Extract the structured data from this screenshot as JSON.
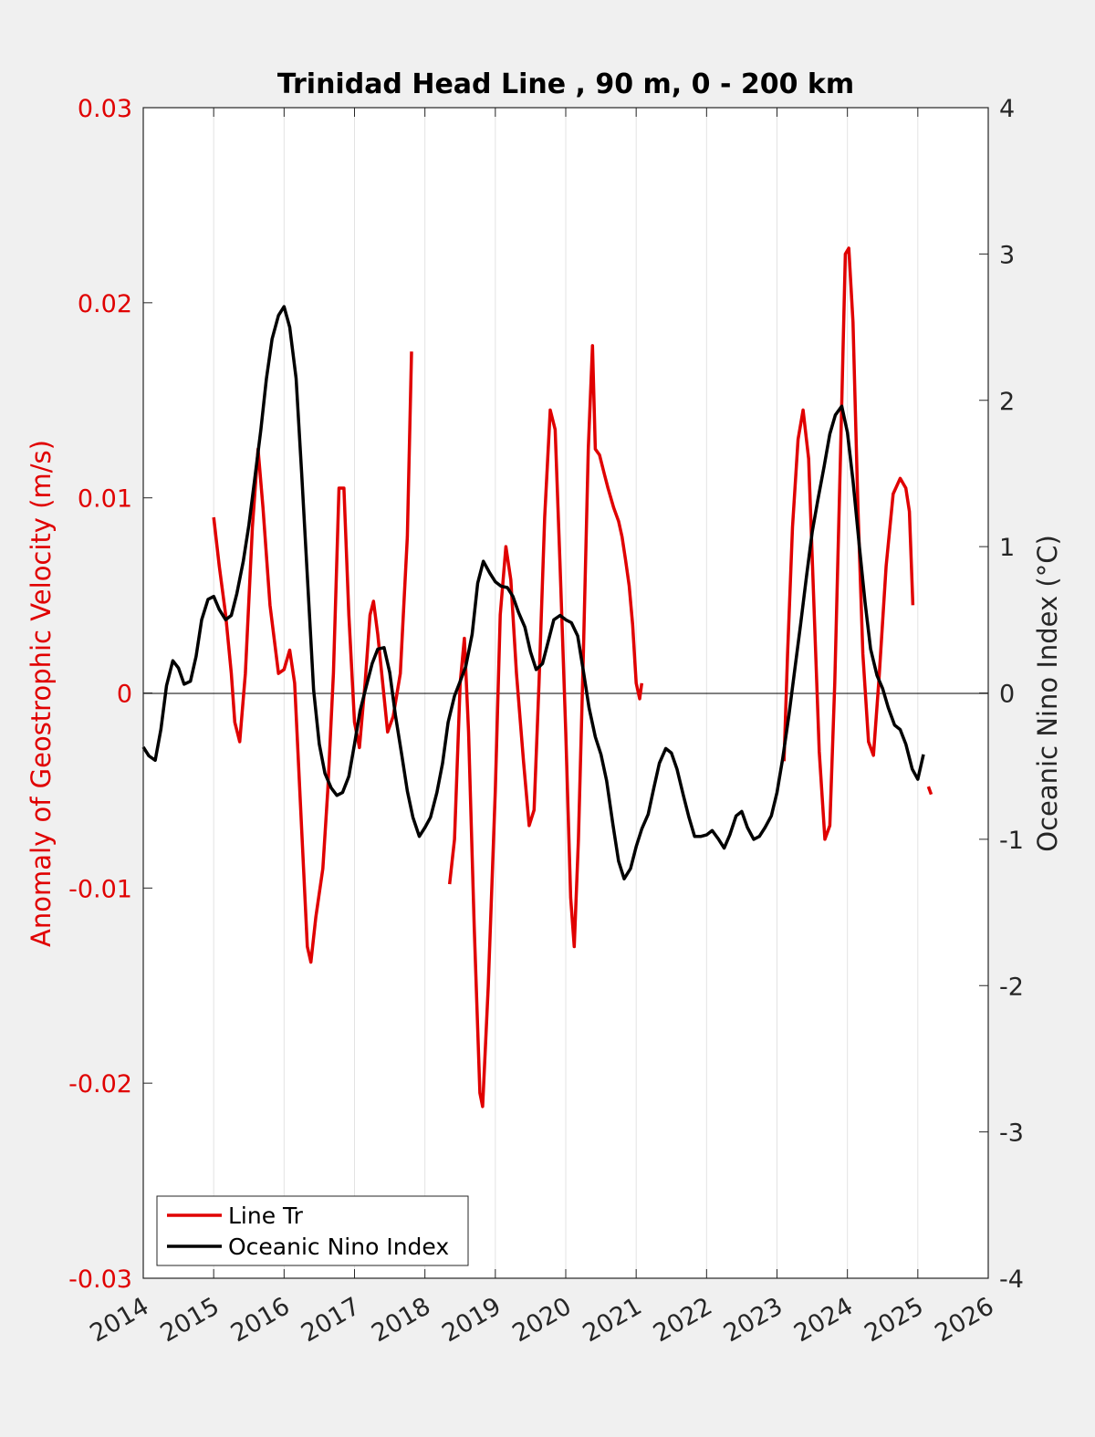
{
  "chart_data": {
    "type": "line",
    "title": "Trinidad Head Line , 90 m, 0 - 200 km",
    "ylabel_left": "Anomaly of Geostrophic Velocity (m/s)",
    "ylabel_right": "Oceanic Nino Index (°C)",
    "xlim": [
      2014,
      2026
    ],
    "ylim_left": [
      -0.03,
      0.03
    ],
    "ylim_right": [
      -4,
      4
    ],
    "x_ticks": [
      "2014",
      "2015",
      "2016",
      "2017",
      "2018",
      "2019",
      "2020",
      "2021",
      "2022",
      "2023",
      "2024",
      "2025",
      "2026"
    ],
    "y_left_ticks": [
      "0.03",
      "0.02",
      "0.01",
      "0",
      "-0.01",
      "-0.02",
      "-0.03"
    ],
    "y_right_ticks": [
      "4",
      "3",
      "2",
      "1",
      "0",
      "-1",
      "-2",
      "-3",
      "-4"
    ],
    "grid": "vertical",
    "legend_position": "bottom-left",
    "colors": {
      "line_tr": "#e00000",
      "oni": "#000000"
    },
    "series": [
      {
        "name": "Line Tr",
        "axis": "left",
        "segments": [
          [
            [
              2015.0,
              0.009
            ],
            [
              2015.08,
              0.0065
            ],
            [
              2015.17,
              0.004
            ],
            [
              2015.25,
              0.001
            ],
            [
              2015.3,
              -0.0015
            ],
            [
              2015.37,
              -0.0025
            ],
            [
              2015.45,
              0.001
            ],
            [
              2015.55,
              0.0085
            ],
            [
              2015.63,
              0.0125
            ],
            [
              2015.7,
              0.0095
            ],
            [
              2015.8,
              0.0045
            ],
            [
              2015.92,
              0.001
            ],
            [
              2016.0,
              0.0012
            ],
            [
              2016.08,
              0.0022
            ],
            [
              2016.15,
              0.0005
            ],
            [
              2016.25,
              -0.007
            ],
            [
              2016.33,
              -0.013
            ],
            [
              2016.38,
              -0.0138
            ],
            [
              2016.45,
              -0.0115
            ],
            [
              2016.55,
              -0.009
            ],
            [
              2016.62,
              -0.005
            ],
            [
              2016.7,
              0.001
            ],
            [
              2016.78,
              0.0105
            ],
            [
              2016.85,
              0.0105
            ],
            [
              2016.92,
              0.004
            ],
            [
              2017.0,
              -0.0015
            ],
            [
              2017.07,
              -0.0028
            ],
            [
              2017.15,
              0.0005
            ],
            [
              2017.22,
              0.004
            ],
            [
              2017.27,
              0.0047
            ],
            [
              2017.33,
              0.003
            ],
            [
              2017.4,
              0.0005
            ],
            [
              2017.47,
              -0.002
            ],
            [
              2017.55,
              -0.0012
            ],
            [
              2017.65,
              0.001
            ],
            [
              2017.75,
              0.008
            ],
            [
              2017.81,
              0.0175
            ]
          ],
          [
            [
              2018.35,
              -0.0098
            ],
            [
              2018.42,
              -0.0075
            ],
            [
              2018.5,
              0.0005
            ],
            [
              2018.56,
              0.0028
            ],
            [
              2018.62,
              -0.002
            ],
            [
              2018.7,
              -0.012
            ],
            [
              2018.78,
              -0.0205
            ],
            [
              2018.82,
              -0.0212
            ],
            [
              2018.9,
              -0.015
            ],
            [
              2019.0,
              -0.005
            ],
            [
              2019.07,
              0.004
            ],
            [
              2019.15,
              0.0075
            ],
            [
              2019.22,
              0.0058
            ],
            [
              2019.3,
              0.001
            ],
            [
              2019.4,
              -0.0035
            ],
            [
              2019.48,
              -0.0068
            ],
            [
              2019.55,
              -0.006
            ],
            [
              2019.62,
              0.0005
            ],
            [
              2019.7,
              0.009
            ],
            [
              2019.78,
              0.0145
            ],
            [
              2019.85,
              0.0135
            ],
            [
              2019.92,
              0.0065
            ],
            [
              2020.0,
              -0.002
            ],
            [
              2020.07,
              -0.0105
            ],
            [
              2020.12,
              -0.013
            ],
            [
              2020.18,
              -0.0075
            ],
            [
              2020.25,
              0.002
            ],
            [
              2020.32,
              0.0125
            ],
            [
              2020.38,
              0.0178
            ],
            [
              2020.42,
              0.0125
            ],
            [
              2020.48,
              0.0122
            ],
            [
              2020.55,
              0.0112
            ],
            [
              2020.6,
              0.0105
            ],
            [
              2020.68,
              0.0095
            ],
            [
              2020.75,
              0.0088
            ],
            [
              2020.8,
              0.008
            ],
            [
              2020.85,
              0.0068
            ],
            [
              2020.9,
              0.0055
            ],
            [
              2020.95,
              0.0035
            ],
            [
              2021.0,
              0.0005
            ],
            [
              2021.05,
              -0.0003
            ],
            [
              2021.08,
              0.0005
            ]
          ],
          [
            [
              2023.1,
              -0.0035
            ],
            [
              2023.15,
              0.002
            ],
            [
              2023.22,
              0.0085
            ],
            [
              2023.3,
              0.013
            ],
            [
              2023.37,
              0.0145
            ],
            [
              2023.45,
              0.012
            ],
            [
              2023.52,
              0.005
            ],
            [
              2023.6,
              -0.003
            ],
            [
              2023.68,
              -0.0075
            ],
            [
              2023.75,
              -0.0068
            ],
            [
              2023.82,
              0.0005
            ],
            [
              2023.9,
              0.012
            ],
            [
              2023.97,
              0.0225
            ],
            [
              2024.02,
              0.0228
            ],
            [
              2024.08,
              0.019
            ],
            [
              2024.15,
              0.0095
            ],
            [
              2024.22,
              0.002
            ],
            [
              2024.3,
              -0.0025
            ],
            [
              2024.37,
              -0.0032
            ],
            [
              2024.45,
              0.0008
            ],
            [
              2024.55,
              0.0065
            ],
            [
              2024.65,
              0.0102
            ],
            [
              2024.75,
              0.011
            ],
            [
              2024.83,
              0.0105
            ],
            [
              2024.88,
              0.0093
            ],
            [
              2024.93,
              0.0045
            ]
          ],
          [
            [
              2025.15,
              -0.0048
            ],
            [
              2025.19,
              -0.0052
            ]
          ]
        ]
      },
      {
        "name": "Oceanic Nino Index",
        "axis": "right",
        "segments": [
          [
            [
              2014.0,
              -0.37
            ],
            [
              2014.08,
              -0.43
            ],
            [
              2014.17,
              -0.46
            ],
            [
              2014.25,
              -0.25
            ],
            [
              2014.33,
              0.05
            ],
            [
              2014.42,
              0.22
            ],
            [
              2014.5,
              0.17
            ],
            [
              2014.58,
              0.06
            ],
            [
              2014.67,
              0.08
            ],
            [
              2014.75,
              0.25
            ],
            [
              2014.83,
              0.5
            ],
            [
              2014.92,
              0.64
            ],
            [
              2015.0,
              0.66
            ],
            [
              2015.08,
              0.57
            ],
            [
              2015.17,
              0.5
            ],
            [
              2015.25,
              0.53
            ],
            [
              2015.33,
              0.68
            ],
            [
              2015.42,
              0.9
            ],
            [
              2015.5,
              1.15
            ],
            [
              2015.58,
              1.45
            ],
            [
              2015.67,
              1.8
            ],
            [
              2015.75,
              2.15
            ],
            [
              2015.83,
              2.42
            ],
            [
              2015.92,
              2.58
            ],
            [
              2016.0,
              2.64
            ],
            [
              2016.08,
              2.5
            ],
            [
              2016.17,
              2.15
            ],
            [
              2016.25,
              1.5
            ],
            [
              2016.33,
              0.8
            ],
            [
              2016.42,
              0.02
            ],
            [
              2016.5,
              -0.35
            ],
            [
              2016.58,
              -0.55
            ],
            [
              2016.67,
              -0.65
            ],
            [
              2016.75,
              -0.7
            ],
            [
              2016.83,
              -0.68
            ],
            [
              2016.92,
              -0.57
            ],
            [
              2017.0,
              -0.35
            ],
            [
              2017.08,
              -0.12
            ],
            [
              2017.17,
              0.05
            ],
            [
              2017.25,
              0.2
            ],
            [
              2017.33,
              0.3
            ],
            [
              2017.42,
              0.31
            ],
            [
              2017.5,
              0.14
            ],
            [
              2017.58,
              -0.15
            ],
            [
              2017.67,
              -0.42
            ],
            [
              2017.75,
              -0.67
            ],
            [
              2017.83,
              -0.85
            ],
            [
              2017.92,
              -0.98
            ],
            [
              2018.0,
              -0.92
            ],
            [
              2018.08,
              -0.85
            ],
            [
              2018.17,
              -0.68
            ],
            [
              2018.25,
              -0.48
            ],
            [
              2018.33,
              -0.2
            ],
            [
              2018.42,
              -0.02
            ],
            [
              2018.5,
              0.08
            ],
            [
              2018.58,
              0.18
            ],
            [
              2018.67,
              0.4
            ],
            [
              2018.75,
              0.75
            ],
            [
              2018.83,
              0.9
            ],
            [
              2018.92,
              0.82
            ],
            [
              2019.0,
              0.76
            ],
            [
              2019.08,
              0.73
            ],
            [
              2019.17,
              0.72
            ],
            [
              2019.25,
              0.66
            ],
            [
              2019.33,
              0.55
            ],
            [
              2019.42,
              0.45
            ],
            [
              2019.5,
              0.28
            ],
            [
              2019.58,
              0.16
            ],
            [
              2019.67,
              0.2
            ],
            [
              2019.75,
              0.35
            ],
            [
              2019.83,
              0.5
            ],
            [
              2019.92,
              0.53
            ],
            [
              2020.0,
              0.5
            ],
            [
              2020.08,
              0.48
            ],
            [
              2020.17,
              0.39
            ],
            [
              2020.25,
              0.15
            ],
            [
              2020.33,
              -0.1
            ],
            [
              2020.42,
              -0.3
            ],
            [
              2020.5,
              -0.42
            ],
            [
              2020.58,
              -0.6
            ],
            [
              2020.67,
              -0.9
            ],
            [
              2020.75,
              -1.15
            ],
            [
              2020.83,
              -1.27
            ],
            [
              2020.92,
              -1.2
            ],
            [
              2021.0,
              -1.05
            ],
            [
              2021.08,
              -0.93
            ],
            [
              2021.17,
              -0.83
            ],
            [
              2021.25,
              -0.65
            ],
            [
              2021.33,
              -0.48
            ],
            [
              2021.42,
              -0.38
            ],
            [
              2021.5,
              -0.41
            ],
            [
              2021.58,
              -0.52
            ],
            [
              2021.67,
              -0.7
            ],
            [
              2021.75,
              -0.85
            ],
            [
              2021.83,
              -0.98
            ],
            [
              2021.92,
              -0.98
            ],
            [
              2022.0,
              -0.97
            ],
            [
              2022.08,
              -0.94
            ],
            [
              2022.17,
              -1.0
            ],
            [
              2022.25,
              -1.06
            ],
            [
              2022.33,
              -0.97
            ],
            [
              2022.42,
              -0.84
            ],
            [
              2022.5,
              -0.81
            ],
            [
              2022.58,
              -0.92
            ],
            [
              2022.67,
              -1.0
            ],
            [
              2022.75,
              -0.98
            ],
            [
              2022.83,
              -0.92
            ],
            [
              2022.92,
              -0.84
            ],
            [
              2023.0,
              -0.68
            ],
            [
              2023.08,
              -0.45
            ],
            [
              2023.17,
              -0.15
            ],
            [
              2023.25,
              0.15
            ],
            [
              2023.33,
              0.45
            ],
            [
              2023.42,
              0.8
            ],
            [
              2023.5,
              1.1
            ],
            [
              2023.58,
              1.32
            ],
            [
              2023.67,
              1.55
            ],
            [
              2023.75,
              1.77
            ],
            [
              2023.83,
              1.9
            ],
            [
              2023.92,
              1.96
            ],
            [
              2024.0,
              1.78
            ],
            [
              2024.08,
              1.45
            ],
            [
              2024.17,
              1.0
            ],
            [
              2024.25,
              0.62
            ],
            [
              2024.33,
              0.3
            ],
            [
              2024.42,
              0.12
            ],
            [
              2024.5,
              0.03
            ],
            [
              2024.58,
              -0.1
            ],
            [
              2024.67,
              -0.22
            ],
            [
              2024.75,
              -0.25
            ],
            [
              2024.83,
              -0.35
            ],
            [
              2024.92,
              -0.52
            ],
            [
              2025.0,
              -0.59
            ],
            [
              2025.08,
              -0.42
            ]
          ]
        ]
      }
    ]
  }
}
